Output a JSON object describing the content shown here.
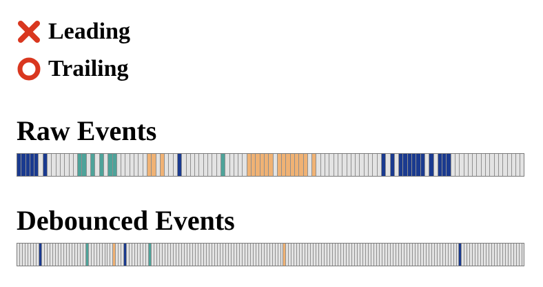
{
  "legend": {
    "leading": {
      "label": "Leading",
      "icon": "cross-mark-icon",
      "color": "#d9371f"
    },
    "trailing": {
      "label": "Trailing",
      "icon": "hollow-circle-icon",
      "color": "#d9371f"
    }
  },
  "sections": {
    "raw": {
      "title": "Raw Events"
    },
    "debounced": {
      "title": "Debounced Events"
    }
  },
  "colors": {
    "empty": "#e3e3e3",
    "dark_blue": "#1a3a8f",
    "teal": "#4ea39a",
    "orange": "#f0b274",
    "border": "#7b7b7b"
  },
  "raw_events": [
    "dark_blue",
    "dark_blue",
    "dark_blue",
    "dark_blue",
    "dark_blue",
    "empty",
    "dark_blue",
    "empty",
    "empty",
    "empty",
    "empty",
    "empty",
    "empty",
    "empty",
    "teal",
    "teal",
    "empty",
    "teal",
    "empty",
    "teal",
    "empty",
    "teal",
    "teal",
    "empty",
    "empty",
    "empty",
    "empty",
    "empty",
    "empty",
    "empty",
    "orange",
    "orange",
    "empty",
    "orange",
    "empty",
    "empty",
    "empty",
    "dark_blue",
    "empty",
    "empty",
    "empty",
    "empty",
    "empty",
    "empty",
    "empty",
    "empty",
    "empty",
    "teal",
    "empty",
    "empty",
    "empty",
    "empty",
    "empty",
    "orange",
    "orange",
    "orange",
    "orange",
    "orange",
    "orange",
    "empty",
    "orange",
    "orange",
    "orange",
    "orange",
    "orange",
    "orange",
    "orange",
    "empty",
    "orange",
    "empty",
    "empty",
    "empty",
    "empty",
    "empty",
    "empty",
    "empty",
    "empty",
    "empty",
    "empty",
    "empty",
    "empty",
    "empty",
    "empty",
    "empty",
    "dark_blue",
    "empty",
    "dark_blue",
    "empty",
    "dark_blue",
    "dark_blue",
    "dark_blue",
    "dark_blue",
    "dark_blue",
    "dark_blue",
    "empty",
    "dark_blue",
    "empty",
    "dark_blue",
    "dark_blue",
    "dark_blue",
    "empty",
    "empty",
    "empty",
    "empty",
    "empty",
    "empty",
    "empty",
    "empty",
    "empty",
    "empty",
    "empty",
    "empty",
    "empty",
    "empty",
    "empty",
    "empty",
    "empty"
  ],
  "debounced_events": [
    "empty",
    "empty",
    "empty",
    "empty",
    "empty",
    "empty",
    "empty",
    "empty",
    "dark_blue",
    "empty",
    "empty",
    "empty",
    "empty",
    "empty",
    "empty",
    "empty",
    "empty",
    "empty",
    "empty",
    "empty",
    "empty",
    "empty",
    "empty",
    "empty",
    "empty",
    "teal",
    "empty",
    "empty",
    "empty",
    "empty",
    "empty",
    "empty",
    "empty",
    "empty",
    "empty",
    "orange",
    "empty",
    "empty",
    "empty",
    "dark_blue",
    "empty",
    "empty",
    "empty",
    "empty",
    "empty",
    "empty",
    "empty",
    "empty",
    "teal",
    "empty",
    "empty",
    "empty",
    "empty",
    "empty",
    "empty",
    "empty",
    "empty",
    "empty",
    "empty",
    "empty",
    "empty",
    "empty",
    "empty",
    "empty",
    "empty",
    "empty",
    "empty",
    "empty",
    "empty",
    "empty",
    "empty",
    "empty",
    "empty",
    "empty",
    "empty",
    "empty",
    "empty",
    "empty",
    "empty",
    "empty",
    "empty",
    "empty",
    "empty",
    "empty",
    "empty",
    "empty",
    "empty",
    "empty",
    "empty",
    "empty",
    "empty",
    "empty",
    "empty",
    "empty",
    "empty",
    "empty",
    "empty",
    "orange",
    "empty",
    "empty",
    "empty",
    "empty",
    "empty",
    "empty",
    "empty",
    "empty",
    "empty",
    "empty",
    "empty",
    "empty",
    "empty",
    "empty",
    "empty",
    "empty",
    "empty",
    "empty",
    "empty",
    "empty",
    "empty",
    "empty",
    "empty",
    "empty",
    "empty",
    "empty",
    "empty",
    "empty",
    "empty",
    "empty",
    "empty",
    "empty",
    "empty",
    "empty",
    "empty",
    "empty",
    "empty",
    "empty",
    "empty",
    "empty",
    "empty",
    "empty",
    "empty",
    "empty",
    "empty",
    "empty",
    "empty",
    "empty",
    "empty",
    "empty",
    "empty",
    "empty",
    "empty",
    "empty",
    "empty",
    "empty",
    "empty",
    "empty",
    "empty",
    "empty",
    "empty",
    "empty",
    "empty",
    "dark_blue",
    "empty",
    "empty",
    "empty",
    "empty",
    "empty",
    "empty",
    "empty",
    "empty",
    "empty",
    "empty",
    "empty",
    "empty",
    "empty",
    "empty",
    "empty",
    "empty",
    "empty",
    "empty",
    "empty",
    "empty",
    "empty",
    "empty",
    "empty"
  ]
}
